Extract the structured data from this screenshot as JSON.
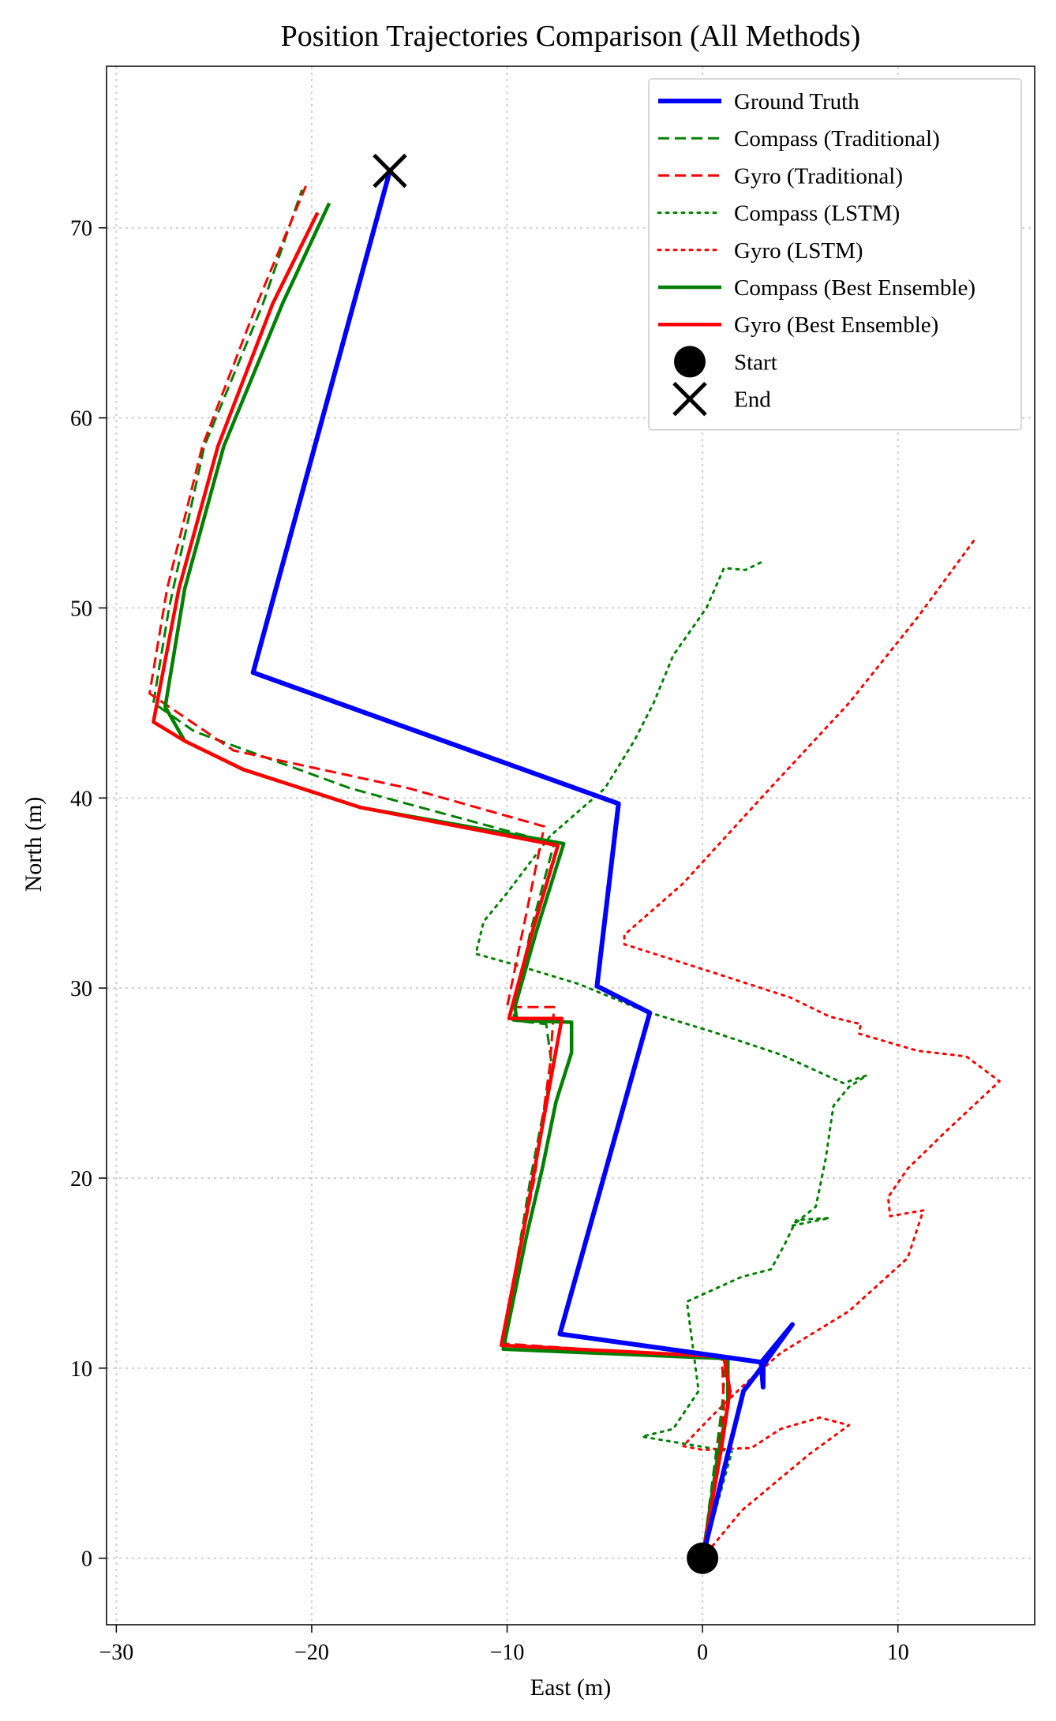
{
  "chart_data": {
    "type": "line",
    "title": "Position Trajectories Comparison (All Methods)",
    "xlabel": "East (m)",
    "ylabel": "North (m)",
    "xlim": [
      -30.5,
      17
    ],
    "ylim": [
      -3.5,
      78.5
    ],
    "xticks": [
      -30,
      -20,
      -10,
      0,
      10
    ],
    "xtick_labels": [
      "−30",
      "−20",
      "−10",
      "0",
      "10"
    ],
    "yticks": [
      0,
      10,
      20,
      30,
      40,
      50,
      60,
      70
    ],
    "ytick_labels": [
      "0",
      "10",
      "20",
      "30",
      "40",
      "50",
      "60",
      "70"
    ],
    "grid": true,
    "legend_position": "top-right",
    "series": [
      {
        "name": "Ground Truth",
        "color": "#0000ff",
        "style": "solid",
        "width": 6,
        "points": [
          [
            0,
            0
          ],
          [
            1.3,
            5.5
          ],
          [
            2.1,
            8.8
          ],
          [
            3.0,
            10.0
          ],
          [
            4.6,
            12.3
          ],
          [
            3.0,
            10.3
          ],
          [
            3.1,
            9.0
          ],
          [
            3.1,
            10.3
          ],
          [
            -7.3,
            11.8
          ],
          [
            -2.7,
            28.7
          ],
          [
            -5.4,
            30.1
          ],
          [
            -4.3,
            39.7
          ],
          [
            -23.0,
            46.6
          ],
          [
            -16.0,
            73.0
          ]
        ]
      },
      {
        "name": "Compass (Traditional)",
        "color": "#008000",
        "style": "dashed",
        "width": 3,
        "points": [
          [
            0,
            0
          ],
          [
            1.0,
            8.0
          ],
          [
            1.2,
            10.5
          ],
          [
            -10.2,
            11.2
          ],
          [
            -8.8,
            20.0
          ],
          [
            -7.7,
            25.8
          ],
          [
            -8.0,
            28.1
          ],
          [
            -9.7,
            28.3
          ],
          [
            -9.5,
            29.5
          ],
          [
            -8.8,
            33.0
          ],
          [
            -7.6,
            37.6
          ],
          [
            -18.0,
            40.5
          ],
          [
            -26.0,
            43.5
          ],
          [
            -28.1,
            45.0
          ],
          [
            -27.3,
            50.0
          ],
          [
            -25.5,
            58.5
          ],
          [
            -22.5,
            66.0
          ],
          [
            -20.5,
            72.0
          ]
        ]
      },
      {
        "name": "Gyro (Traditional)",
        "color": "#ff0000",
        "style": "dashed",
        "width": 3,
        "points": [
          [
            0,
            0
          ],
          [
            1.1,
            7.8
          ],
          [
            1.0,
            10.5
          ],
          [
            -10.3,
            11.3
          ],
          [
            -8.6,
            20.0
          ],
          [
            -7.8,
            26.0
          ],
          [
            -7.6,
            29.0
          ],
          [
            -10.0,
            29.0
          ],
          [
            -9.2,
            33.0
          ],
          [
            -8.1,
            38.5
          ],
          [
            -15.0,
            40.5
          ],
          [
            -24.0,
            42.5
          ],
          [
            -28.3,
            45.5
          ],
          [
            -27.4,
            51.0
          ],
          [
            -25.6,
            58.5
          ],
          [
            -22.8,
            66.0
          ],
          [
            -20.3,
            72.2
          ]
        ]
      },
      {
        "name": "Compass (LSTM)",
        "color": "#008000",
        "style": "dotted",
        "width": 3,
        "points": [
          [
            0,
            0
          ],
          [
            0.8,
            3.0
          ],
          [
            1.5,
            5.6
          ],
          [
            -0.8,
            6.0
          ],
          [
            -3.1,
            6.4
          ],
          [
            -1.5,
            6.8
          ],
          [
            -0.2,
            8.8
          ],
          [
            -0.8,
            13.5
          ],
          [
            2.0,
            14.8
          ],
          [
            3.5,
            15.2
          ],
          [
            4.2,
            16.5
          ],
          [
            4.8,
            17.8
          ],
          [
            6.5,
            17.9
          ],
          [
            4.6,
            17.5
          ],
          [
            5.8,
            18.5
          ],
          [
            6.3,
            21.0
          ],
          [
            6.7,
            23.8
          ],
          [
            7.5,
            24.8
          ],
          [
            8.4,
            25.4
          ],
          [
            7.2,
            25.0
          ],
          [
            4.0,
            26.5
          ],
          [
            0.5,
            27.7
          ],
          [
            -3.0,
            28.8
          ],
          [
            -6.3,
            30.2
          ],
          [
            -9.5,
            31.2
          ],
          [
            -11.6,
            31.8
          ],
          [
            -11.2,
            33.5
          ],
          [
            -10.0,
            35.0
          ],
          [
            -7.8,
            38.0
          ],
          [
            -5.0,
            40.5
          ],
          [
            -3.5,
            43.0
          ],
          [
            -2.5,
            45.0
          ],
          [
            -1.5,
            47.5
          ],
          [
            0.2,
            50.0
          ],
          [
            1.1,
            52.1
          ],
          [
            2.2,
            52.0
          ],
          [
            3.2,
            52.5
          ]
        ]
      },
      {
        "name": "Gyro (LSTM)",
        "color": "#ff0000",
        "style": "dotted",
        "width": 3,
        "points": [
          [
            0,
            0
          ],
          [
            2.0,
            2.5
          ],
          [
            5.5,
            5.5
          ],
          [
            7.5,
            7.0
          ],
          [
            6.0,
            7.4
          ],
          [
            4.0,
            6.8
          ],
          [
            2.5,
            5.8
          ],
          [
            0.0,
            5.7
          ],
          [
            -1.0,
            5.9
          ],
          [
            0.5,
            7.5
          ],
          [
            2.0,
            9.0
          ],
          [
            4.0,
            10.8
          ],
          [
            7.5,
            13.0
          ],
          [
            10.5,
            15.8
          ],
          [
            11.3,
            18.3
          ],
          [
            9.6,
            18.0
          ],
          [
            9.5,
            19.0
          ],
          [
            10.5,
            20.5
          ],
          [
            12.5,
            22.5
          ],
          [
            15.2,
            25.1
          ],
          [
            13.5,
            26.4
          ],
          [
            11.0,
            26.7
          ],
          [
            8.0,
            27.6
          ],
          [
            8.1,
            28.1
          ],
          [
            6.5,
            28.5
          ],
          [
            4.5,
            29.5
          ],
          [
            0.0,
            31.0
          ],
          [
            -4.0,
            32.3
          ],
          [
            -4.0,
            32.8
          ],
          [
            -1.0,
            35.5
          ],
          [
            3.0,
            40.0
          ],
          [
            7.5,
            45.0
          ],
          [
            11.0,
            49.5
          ],
          [
            14.0,
            53.7
          ]
        ]
      },
      {
        "name": "Compass (Best Ensemble)",
        "color": "#008000",
        "style": "solid",
        "width": 4.5,
        "points": [
          [
            0,
            0
          ],
          [
            0.8,
            5.5
          ],
          [
            1.3,
            8.0
          ],
          [
            1.3,
            10.5
          ],
          [
            -10.2,
            11.0
          ],
          [
            -9.0,
            17.0
          ],
          [
            -8.2,
            20.5
          ],
          [
            -7.5,
            24.0
          ],
          [
            -6.7,
            26.6
          ],
          [
            -6.7,
            28.2
          ],
          [
            -9.5,
            28.3
          ],
          [
            -9.6,
            29.0
          ],
          [
            -8.5,
            33.0
          ],
          [
            -7.1,
            37.6
          ],
          [
            -17.5,
            39.5
          ],
          [
            -23.5,
            41.5
          ],
          [
            -26.5,
            43.0
          ],
          [
            -27.5,
            44.8
          ],
          [
            -26.5,
            51.0
          ],
          [
            -24.5,
            58.5
          ],
          [
            -21.5,
            66.0
          ],
          [
            -19.1,
            71.3
          ]
        ]
      },
      {
        "name": "Gyro (Best Ensemble)",
        "color": "#ff0000",
        "style": "solid",
        "width": 4.5,
        "points": [
          [
            0,
            0
          ],
          [
            1.0,
            6.0
          ],
          [
            1.4,
            8.8
          ],
          [
            1.1,
            10.6
          ],
          [
            -10.3,
            11.2
          ],
          [
            -9.2,
            17.0
          ],
          [
            -8.5,
            21.0
          ],
          [
            -7.8,
            25.0
          ],
          [
            -7.2,
            28.4
          ],
          [
            -9.9,
            28.4
          ],
          [
            -9.8,
            28.8
          ],
          [
            -8.7,
            33.0
          ],
          [
            -7.4,
            37.5
          ],
          [
            -17.5,
            39.5
          ],
          [
            -23.5,
            41.5
          ],
          [
            -26.5,
            43.0
          ],
          [
            -28.1,
            44.0
          ],
          [
            -26.8,
            51.0
          ],
          [
            -24.8,
            58.5
          ],
          [
            -22.0,
            66.0
          ],
          [
            -19.7,
            70.8
          ]
        ]
      }
    ],
    "markers": [
      {
        "name": "Start",
        "type": "circle",
        "x": 0,
        "y": 0,
        "color": "#000000"
      },
      {
        "name": "End",
        "type": "x",
        "x": -16.0,
        "y": 73.0,
        "color": "#000000"
      }
    ]
  }
}
